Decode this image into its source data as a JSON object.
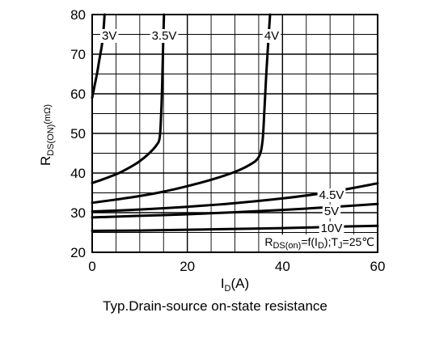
{
  "chart_data": {
    "type": "line",
    "title": "",
    "caption": "Typ.Drain-source on-state resistance",
    "xlabel": {
      "main": "I",
      "sub": "D",
      "tail": "(A)"
    },
    "ylabel": {
      "main": "R",
      "sub": "DS(ON)",
      "tail": "(mΩ)"
    },
    "xlim": [
      0,
      60
    ],
    "ylim": [
      20,
      80
    ],
    "xticks": [
      0,
      20,
      40,
      60
    ],
    "yticks": [
      20,
      30,
      40,
      50,
      60,
      70,
      80
    ],
    "grid": true,
    "colors": {
      "curve": "#000000",
      "grid": "#000000",
      "background": "#ffffff"
    },
    "annotation": {
      "r": "R",
      "r_sub": "DS(on)",
      "eq": "=f(I",
      "i_sub": "D",
      "mid": ");T",
      "t_sub": "J",
      "tail": "=25℃"
    },
    "series": [
      {
        "name": "3V",
        "x": [
          0,
          0.5,
          1.0,
          1.5,
          2.0,
          2.3,
          2.5,
          2.6
        ],
        "y": [
          59,
          62,
          65,
          68.5,
          72,
          75,
          78,
          80
        ]
      },
      {
        "name": "3.5V",
        "x": [
          0,
          2,
          4,
          6,
          8,
          10,
          12,
          13.5,
          14.2,
          14.5,
          14.7,
          14.9,
          15.1
        ],
        "y": [
          37.5,
          38.3,
          39.2,
          40.2,
          41.5,
          43,
          45,
          47,
          49,
          55,
          62,
          72,
          80
        ]
      },
      {
        "name": "4V",
        "x": [
          0,
          5,
          10,
          15,
          20,
          25,
          30,
          33,
          35,
          35.8,
          36.2,
          36.6,
          37.0,
          37.4
        ],
        "y": [
          32.5,
          33.3,
          34.2,
          35.3,
          36.7,
          38.3,
          40.3,
          42,
          44,
          48,
          56,
          65,
          73,
          80
        ]
      },
      {
        "name": "4.5V",
        "x": [
          0,
          10,
          20,
          30,
          40,
          50,
          60
        ],
        "y": [
          30.3,
          30.8,
          31.5,
          32.4,
          33.6,
          35.2,
          37.4
        ]
      },
      {
        "name": "5V",
        "x": [
          0,
          10,
          20,
          30,
          40,
          50,
          60
        ],
        "y": [
          28.8,
          29.2,
          29.6,
          30.1,
          30.7,
          31.4,
          32.2
        ]
      },
      {
        "name": "10V",
        "x": [
          0,
          10,
          20,
          30,
          40,
          50,
          60
        ],
        "y": [
          25.4,
          25.5,
          25.7,
          25.9,
          26.1,
          26.4,
          26.7
        ]
      }
    ]
  }
}
